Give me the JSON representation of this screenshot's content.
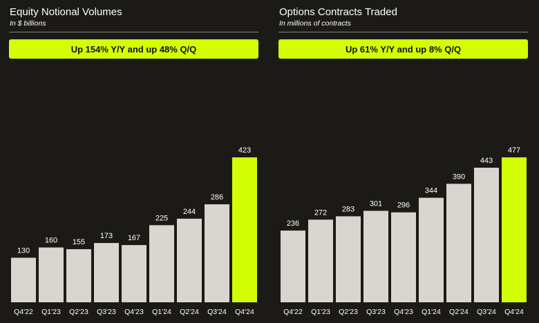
{
  "chart_data": [
    {
      "type": "bar",
      "title": "Equity Notional Volumes",
      "subtitle": "In $ billions",
      "annotation": "Up 154% Y/Y and up 48% Q/Q",
      "categories": [
        "Q4'22",
        "Q1'23",
        "Q2'23",
        "Q3'23",
        "Q4'23",
        "Q1'24",
        "Q2'24",
        "Q3'24",
        "Q4'24"
      ],
      "values": [
        130,
        160,
        155,
        173,
        167,
        225,
        244,
        286,
        423
      ],
      "highlight_index": 8,
      "ylim": [
        0,
        423
      ],
      "xlabel": "",
      "ylabel": "",
      "grid": false,
      "legend": "none"
    },
    {
      "type": "bar",
      "title": "Options Contracts Traded",
      "subtitle": "In millions of contracts",
      "annotation": "Up 61% Y/Y and up 8% Q/Q",
      "categories": [
        "Q4'22",
        "Q1'23",
        "Q2'23",
        "Q3'23",
        "Q4'23",
        "Q1'24",
        "Q2'24",
        "Q3'24",
        "Q4'24"
      ],
      "values": [
        236,
        272,
        283,
        301,
        296,
        344,
        390,
        443,
        477
      ],
      "highlight_index": 8,
      "ylim": [
        0,
        477
      ],
      "xlabel": "",
      "ylabel": "",
      "grid": false,
      "legend": "none"
    }
  ],
  "colors": {
    "background": "#1c1a16",
    "bar": "#d9d5cf",
    "highlight": "#d4fe05",
    "text": "#ffffff",
    "banner_text": "#111111"
  }
}
